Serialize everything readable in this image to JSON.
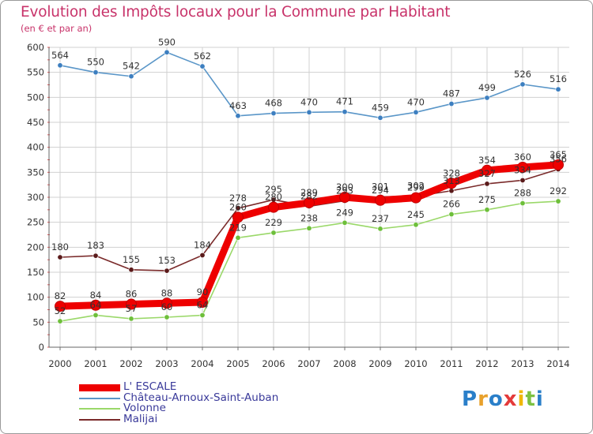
{
  "title": "Evolution des Impôts locaux pour la Commune par Habitant",
  "subtitle": "(en € et par an)",
  "logo": {
    "letters": [
      "P",
      "r",
      "o",
      "x",
      "i",
      "t",
      "i"
    ],
    "colors": [
      "#2a7fc9",
      "#e8a12c",
      "#2a7fc9",
      "#e43a3a",
      "#f0b800",
      "#7cc142",
      "#2a7fc9"
    ]
  },
  "chart_data": {
    "type": "line",
    "x": [
      2000,
      2001,
      2002,
      2003,
      2004,
      2005,
      2006,
      2007,
      2008,
      2009,
      2010,
      2011,
      2012,
      2013,
      2014
    ],
    "x_tick_labels": [
      "2000",
      "2001",
      "2002",
      "2003",
      "2004",
      "2005",
      "2006",
      "2007",
      "2008",
      "2009",
      "2010",
      "2011",
      "2012",
      "2013",
      "2014"
    ],
    "ylim": [
      0,
      600
    ],
    "y_ticks": [
      0,
      50,
      100,
      150,
      200,
      250,
      300,
      350,
      400,
      450,
      500,
      550,
      600
    ],
    "y_tick_labels": [
      "0",
      "50",
      "100",
      "150",
      "200",
      "250",
      "300",
      "350",
      "400",
      "450",
      "500",
      "550",
      "600"
    ],
    "grid": true,
    "legend_position": "bottom-left",
    "series": [
      {
        "name": "Château-Arnoux-Saint-Auban",
        "color": "#5a96c8",
        "point_color": "#3d7fc0",
        "weight": "thin",
        "values": [
          564,
          550,
          542,
          590,
          562,
          463,
          468,
          470,
          471,
          459,
          470,
          487,
          499,
          526,
          516
        ],
        "labels": [
          "564",
          "550",
          "542",
          "590",
          "562",
          "463",
          "468",
          "470",
          "471",
          "459",
          "470",
          "487",
          "499",
          "526",
          "516"
        ]
      },
      {
        "name": "Malijai",
        "color": "#7a2a2a",
        "point_color": "#5a1a1a",
        "weight": "thin",
        "values": [
          180,
          183,
          155,
          153,
          184,
          278,
          295,
          282,
          293,
          301,
          302,
          313,
          327,
          334,
          356
        ],
        "labels": [
          "180",
          "183",
          "155",
          "153",
          "184",
          "278",
          "295",
          "282",
          "293",
          "301",
          "302",
          "313",
          "327",
          "334",
          "356"
        ]
      },
      {
        "name": "Volonne",
        "color": "#9ad869",
        "point_color": "#6dbf3a",
        "weight": "thin",
        "values": [
          52,
          64,
          57,
          60,
          64,
          219,
          229,
          238,
          249,
          237,
          245,
          266,
          275,
          288,
          292
        ],
        "labels": [
          "52",
          "64",
          "57",
          "60",
          "64",
          "219",
          "229",
          "238",
          "249",
          "237",
          "245",
          "266",
          "275",
          "288",
          "292"
        ]
      },
      {
        "name": "L' ESCALE",
        "color": "#ee0000",
        "point_color": "#ee0000",
        "weight": "thick",
        "values": [
          82,
          84,
          86,
          88,
          90,
          260,
          280,
          289,
          300,
          294,
          299,
          328,
          354,
          360,
          365
        ],
        "labels": [
          "82",
          "84",
          "86",
          "88",
          "90",
          "260",
          "280",
          "289",
          "300",
          "294",
          "299",
          "328",
          "354",
          "360",
          "365"
        ]
      }
    ],
    "legend_order": [
      "L' ESCALE",
      "Château-Arnoux-Saint-Auban",
      "Volonne",
      "Malijai"
    ]
  }
}
